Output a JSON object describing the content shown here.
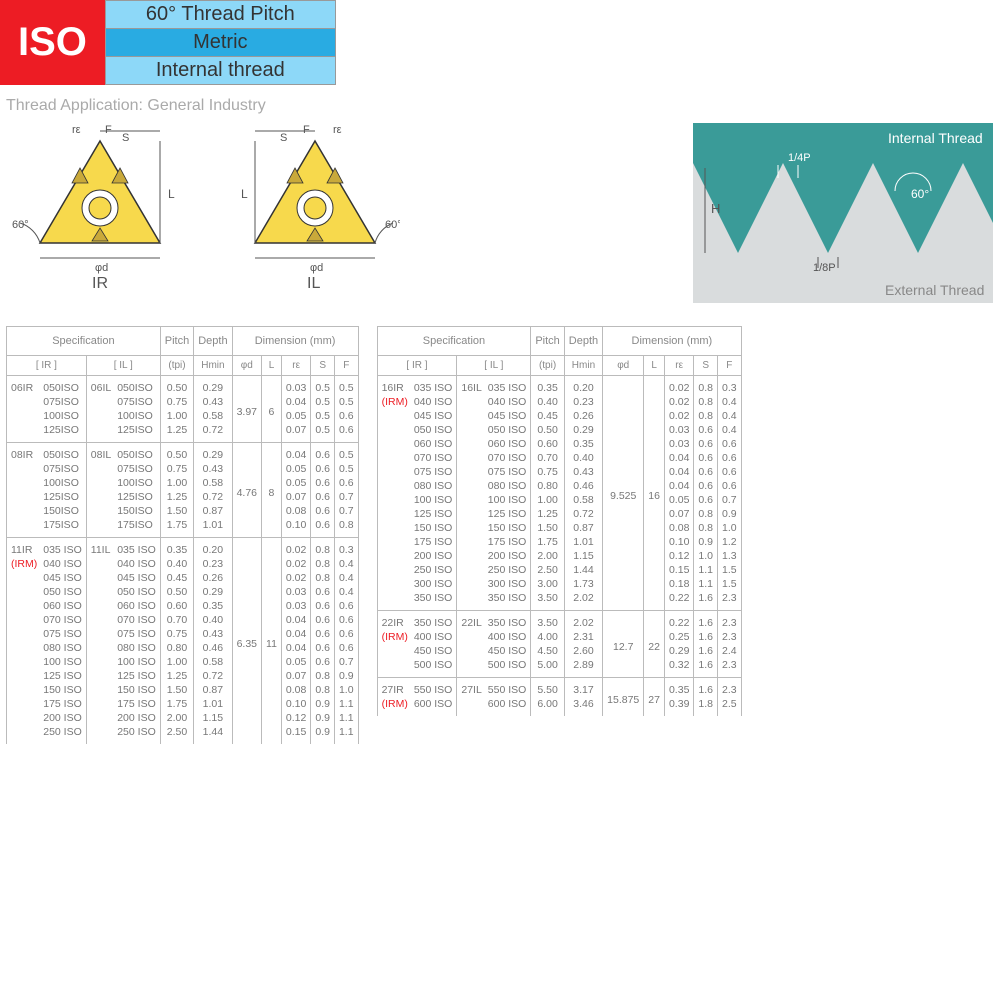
{
  "header": {
    "iso": "ISO",
    "pitch": "60° Thread Pitch",
    "metric": "Metric",
    "thread": "Internal thread"
  },
  "application": "Thread Application: General Industry",
  "diagrams": {
    "ir_label": "IR",
    "il_label": "IL",
    "angle_label": "60°",
    "dim_labels": {
      "re": "rε",
      "F": "F",
      "S": "S",
      "L": "L",
      "phid": "φd"
    },
    "thread_profile": {
      "internal_label": "Internal Thread",
      "external_label": "External Thread",
      "angle": "60°",
      "quarter_p": "1/4P",
      "eighth_p": "1/8P",
      "H": "H",
      "bg_teal": "#3a9b98",
      "bg_gray": "#d9dcdd",
      "text_color": "#ffffff"
    }
  },
  "table_headers": {
    "spec": "Specification",
    "pitch": "Pitch",
    "depth": "Depth",
    "dim": "Dimension (mm)",
    "ir": "[  IR  ]",
    "il": "[  IL  ]",
    "tpi": "(tpi)",
    "hmin": "Hmin",
    "phid": "φd",
    "L": "L",
    "re": "rε",
    "S": "S",
    "F": "F"
  },
  "irm_label": "(IRM)",
  "groups_left": [
    {
      "ir_prefix": "06IR",
      "il_prefix": "06IL",
      "phid": "3.97",
      "L": "6",
      "rows": [
        {
          "code": "050ISO",
          "tpi": "0.50",
          "hmin": "0.29",
          "re": "0.03",
          "s": "0.5",
          "f": "0.5"
        },
        {
          "code": "075ISO",
          "tpi": "0.75",
          "hmin": "0.43",
          "re": "0.04",
          "s": "0.5",
          "f": "0.5"
        },
        {
          "code": "100ISO",
          "tpi": "1.00",
          "hmin": "0.58",
          "re": "0.05",
          "s": "0.5",
          "f": "0.6"
        },
        {
          "code": "125ISO",
          "tpi": "1.25",
          "hmin": "0.72",
          "re": "0.07",
          "s": "0.5",
          "f": "0.6"
        }
      ]
    },
    {
      "ir_prefix": "08IR",
      "il_prefix": "08IL",
      "phid": "4.76",
      "L": "8",
      "rows": [
        {
          "code": "050ISO",
          "tpi": "0.50",
          "hmin": "0.29",
          "re": "0.04",
          "s": "0.6",
          "f": "0.5"
        },
        {
          "code": "075ISO",
          "tpi": "0.75",
          "hmin": "0.43",
          "re": "0.05",
          "s": "0.6",
          "f": "0.5"
        },
        {
          "code": "100ISO",
          "tpi": "1.00",
          "hmin": "0.58",
          "re": "0.05",
          "s": "0.6",
          "f": "0.6"
        },
        {
          "code": "125ISO",
          "tpi": "1.25",
          "hmin": "0.72",
          "re": "0.07",
          "s": "0.6",
          "f": "0.7"
        },
        {
          "code": "150ISO",
          "tpi": "1.50",
          "hmin": "0.87",
          "re": "0.08",
          "s": "0.6",
          "f": "0.7"
        },
        {
          "code": "175ISO",
          "tpi": "1.75",
          "hmin": "1.01",
          "re": "0.10",
          "s": "0.6",
          "f": "0.8"
        }
      ]
    },
    {
      "ir_prefix": "11IR",
      "il_prefix": "11IL",
      "phid": "6.35",
      "L": "11",
      "irm": true,
      "rows": [
        {
          "code": "035 ISO",
          "tpi": "0.35",
          "hmin": "0.20",
          "re": "0.02",
          "s": "0.8",
          "f": "0.3"
        },
        {
          "code": "040 ISO",
          "tpi": "0.40",
          "hmin": "0.23",
          "re": "0.02",
          "s": "0.8",
          "f": "0.4"
        },
        {
          "code": "045 ISO",
          "tpi": "0.45",
          "hmin": "0.26",
          "re": "0.02",
          "s": "0.8",
          "f": "0.4"
        },
        {
          "code": "050 ISO",
          "tpi": "0.50",
          "hmin": "0.29",
          "re": "0.03",
          "s": "0.6",
          "f": "0.4"
        },
        {
          "code": "060 ISO",
          "tpi": "0.60",
          "hmin": "0.35",
          "re": "0.03",
          "s": "0.6",
          "f": "0.6"
        },
        {
          "code": "070 ISO",
          "tpi": "0.70",
          "hmin": "0.40",
          "re": "0.04",
          "s": "0.6",
          "f": "0.6"
        },
        {
          "code": "075 ISO",
          "tpi": "0.75",
          "hmin": "0.43",
          "re": "0.04",
          "s": "0.6",
          "f": "0.6"
        },
        {
          "code": "080 ISO",
          "tpi": "0.80",
          "hmin": "0.46",
          "re": "0.04",
          "s": "0.6",
          "f": "0.6"
        },
        {
          "code": "100 ISO",
          "tpi": "1.00",
          "hmin": "0.58",
          "re": "0.05",
          "s": "0.6",
          "f": "0.7"
        },
        {
          "code": "125 ISO",
          "tpi": "1.25",
          "hmin": "0.72",
          "re": "0.07",
          "s": "0.8",
          "f": "0.9"
        },
        {
          "code": "150 ISO",
          "tpi": "1.50",
          "hmin": "0.87",
          "re": "0.08",
          "s": "0.8",
          "f": "1.0"
        },
        {
          "code": "175 ISO",
          "tpi": "1.75",
          "hmin": "1.01",
          "re": "0.10",
          "s": "0.9",
          "f": "1.1"
        },
        {
          "code": "200 ISO",
          "tpi": "2.00",
          "hmin": "1.15",
          "re": "0.12",
          "s": "0.9",
          "f": "1.1"
        },
        {
          "code": "250 ISO",
          "tpi": "2.50",
          "hmin": "1.44",
          "re": "0.15",
          "s": "0.9",
          "f": "1.1"
        }
      ]
    }
  ],
  "groups_right": [
    {
      "ir_prefix": "16IR",
      "il_prefix": "16IL",
      "phid": "9.525",
      "L": "16",
      "irm": true,
      "rows": [
        {
          "code": "035 ISO",
          "tpi": "0.35",
          "hmin": "0.20",
          "re": "0.02",
          "s": "0.8",
          "f": "0.3"
        },
        {
          "code": "040 ISO",
          "tpi": "0.40",
          "hmin": "0.23",
          "re": "0.02",
          "s": "0.8",
          "f": "0.4"
        },
        {
          "code": "045 ISO",
          "tpi": "0.45",
          "hmin": "0.26",
          "re": "0.02",
          "s": "0.8",
          "f": "0.4"
        },
        {
          "code": "050 ISO",
          "tpi": "0.50",
          "hmin": "0.29",
          "re": "0.03",
          "s": "0.6",
          "f": "0.4"
        },
        {
          "code": "060 ISO",
          "tpi": "0.60",
          "hmin": "0.35",
          "re": "0.03",
          "s": "0.6",
          "f": "0.6"
        },
        {
          "code": "070 ISO",
          "tpi": "0.70",
          "hmin": "0.40",
          "re": "0.04",
          "s": "0.6",
          "f": "0.6"
        },
        {
          "code": "075 ISO",
          "tpi": "0.75",
          "hmin": "0.43",
          "re": "0.04",
          "s": "0.6",
          "f": "0.6"
        },
        {
          "code": "080 ISO",
          "tpi": "0.80",
          "hmin": "0.46",
          "re": "0.04",
          "s": "0.6",
          "f": "0.6"
        },
        {
          "code": "100 ISO",
          "tpi": "1.00",
          "hmin": "0.58",
          "re": "0.05",
          "s": "0.6",
          "f": "0.7"
        },
        {
          "code": "125 ISO",
          "tpi": "1.25",
          "hmin": "0.72",
          "re": "0.07",
          "s": "0.8",
          "f": "0.9"
        },
        {
          "code": "150 ISO",
          "tpi": "1.50",
          "hmin": "0.87",
          "re": "0.08",
          "s": "0.8",
          "f": "1.0"
        },
        {
          "code": "175 ISO",
          "tpi": "1.75",
          "hmin": "1.01",
          "re": "0.10",
          "s": "0.9",
          "f": "1.2"
        },
        {
          "code": "200 ISO",
          "tpi": "2.00",
          "hmin": "1.15",
          "re": "0.12",
          "s": "1.0",
          "f": "1.3"
        },
        {
          "code": "250 ISO",
          "tpi": "2.50",
          "hmin": "1.44",
          "re": "0.15",
          "s": "1.1",
          "f": "1.5"
        },
        {
          "code": "300 ISO",
          "tpi": "3.00",
          "hmin": "1.73",
          "re": "0.18",
          "s": "1.1",
          "f": "1.5"
        },
        {
          "code": "350 ISO",
          "tpi": "3.50",
          "hmin": "2.02",
          "re": "0.22",
          "s": "1.6",
          "f": "2.3"
        }
      ]
    },
    {
      "ir_prefix": "22IR",
      "il_prefix": "22IL",
      "phid": "12.7",
      "L": "22",
      "irm": true,
      "rows": [
        {
          "code": "350 ISO",
          "tpi": "3.50",
          "hmin": "2.02",
          "re": "0.22",
          "s": "1.6",
          "f": "2.3"
        },
        {
          "code": "400 ISO",
          "tpi": "4.00",
          "hmin": "2.31",
          "re": "0.25",
          "s": "1.6",
          "f": "2.3"
        },
        {
          "code": "450 ISO",
          "tpi": "4.50",
          "hmin": "2.60",
          "re": "0.29",
          "s": "1.6",
          "f": "2.4"
        },
        {
          "code": "500 ISO",
          "tpi": "5.00",
          "hmin": "2.89",
          "re": "0.32",
          "s": "1.6",
          "f": "2.3"
        }
      ]
    },
    {
      "ir_prefix": "27IR",
      "il_prefix": "27IL",
      "phid": "15.875",
      "L": "27",
      "irm": true,
      "rows": [
        {
          "code": "550 ISO",
          "tpi": "5.50",
          "hmin": "3.17",
          "re": "0.35",
          "s": "1.6",
          "f": "2.3"
        },
        {
          "code": "600 ISO",
          "tpi": "6.00",
          "hmin": "3.46",
          "re": "0.39",
          "s": "1.8",
          "f": "2.5"
        }
      ]
    }
  ]
}
